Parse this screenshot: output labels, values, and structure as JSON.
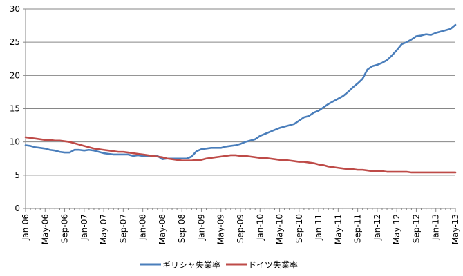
{
  "chart_data": {
    "type": "line",
    "title": "",
    "xlabel": "",
    "ylabel": "",
    "ylim": [
      0,
      30
    ],
    "yticks": [
      0,
      5,
      10,
      15,
      20,
      25,
      30
    ],
    "grid": "horizontal",
    "legend_position": "bottom",
    "x_tick_labels": [
      "Jan-06",
      "May-06",
      "Sep-06",
      "Jan-07",
      "May-07",
      "Sep-07",
      "Jan-08",
      "May-08",
      "Sep-08",
      "Jan-09",
      "May-09",
      "Sep-09",
      "Jan-10",
      "May-10",
      "Sep-10",
      "Jan-11",
      "May-11",
      "Sep-11",
      "Jan-12",
      "May-12",
      "Sep-12",
      "Jan-13",
      "May-13"
    ],
    "x": [
      "Jan-06",
      "Feb-06",
      "Mar-06",
      "Apr-06",
      "May-06",
      "Jun-06",
      "Jul-06",
      "Aug-06",
      "Sep-06",
      "Oct-06",
      "Nov-06",
      "Dec-06",
      "Jan-07",
      "Feb-07",
      "Mar-07",
      "Apr-07",
      "May-07",
      "Jun-07",
      "Jul-07",
      "Aug-07",
      "Sep-07",
      "Oct-07",
      "Nov-07",
      "Dec-07",
      "Jan-08",
      "Feb-08",
      "Mar-08",
      "Apr-08",
      "May-08",
      "Jun-08",
      "Jul-08",
      "Aug-08",
      "Sep-08",
      "Oct-08",
      "Nov-08",
      "Dec-08",
      "Jan-09",
      "Feb-09",
      "Mar-09",
      "Apr-09",
      "May-09",
      "Jun-09",
      "Jul-09",
      "Aug-09",
      "Sep-09",
      "Oct-09",
      "Nov-09",
      "Dec-09",
      "Jan-10",
      "Feb-10",
      "Mar-10",
      "Apr-10",
      "May-10",
      "Jun-10",
      "Jul-10",
      "Aug-10",
      "Sep-10",
      "Oct-10",
      "Nov-10",
      "Dec-10",
      "Jan-11",
      "Feb-11",
      "Mar-11",
      "Apr-11",
      "May-11",
      "Jun-11",
      "Jul-11",
      "Aug-11",
      "Sep-11",
      "Oct-11",
      "Nov-11",
      "Dec-11",
      "Jan-12",
      "Feb-12",
      "Mar-12",
      "Apr-12",
      "May-12",
      "Jun-12",
      "Jul-12",
      "Aug-12",
      "Sep-12",
      "Oct-12",
      "Nov-12",
      "Dec-12",
      "Jan-13",
      "Feb-13",
      "Mar-13",
      "Apr-13",
      "May-13"
    ],
    "series": [
      {
        "name": "ギリシャ失業率",
        "color": "#4a7ebb",
        "values": [
          9.5,
          9.4,
          9.2,
          9.1,
          9.0,
          8.8,
          8.7,
          8.5,
          8.4,
          8.4,
          8.8,
          8.8,
          8.7,
          8.8,
          8.7,
          8.5,
          8.3,
          8.2,
          8.1,
          8.1,
          8.1,
          8.1,
          7.9,
          8.0,
          7.9,
          7.9,
          7.9,
          7.9,
          7.4,
          7.5,
          7.5,
          7.5,
          7.5,
          7.5,
          7.8,
          8.6,
          8.9,
          9.0,
          9.1,
          9.1,
          9.1,
          9.3,
          9.4,
          9.5,
          9.7,
          10.0,
          10.2,
          10.4,
          10.9,
          11.2,
          11.5,
          11.8,
          12.1,
          12.3,
          12.5,
          12.7,
          13.2,
          13.7,
          13.9,
          14.4,
          14.7,
          15.2,
          15.7,
          16.1,
          16.5,
          16.9,
          17.5,
          18.2,
          18.8,
          19.5,
          20.9,
          21.4,
          21.6,
          21.9,
          22.3,
          23.0,
          23.8,
          24.7,
          25.0,
          25.4,
          25.9,
          26.0,
          26.2,
          26.1,
          26.4,
          26.6,
          26.8,
          27.0,
          27.6
        ]
      },
      {
        "name": "ドイツ失業率",
        "color": "#be4b48",
        "values": [
          10.7,
          10.6,
          10.5,
          10.4,
          10.3,
          10.3,
          10.2,
          10.2,
          10.1,
          10.0,
          9.8,
          9.6,
          9.4,
          9.2,
          9.0,
          8.9,
          8.8,
          8.7,
          8.6,
          8.5,
          8.5,
          8.4,
          8.3,
          8.2,
          8.1,
          8.0,
          7.9,
          7.8,
          7.7,
          7.5,
          7.4,
          7.3,
          7.2,
          7.2,
          7.2,
          7.3,
          7.3,
          7.5,
          7.6,
          7.7,
          7.8,
          7.9,
          8.0,
          8.0,
          7.9,
          7.9,
          7.8,
          7.7,
          7.6,
          7.6,
          7.5,
          7.4,
          7.3,
          7.3,
          7.2,
          7.1,
          7.0,
          7.0,
          6.9,
          6.8,
          6.6,
          6.5,
          6.3,
          6.2,
          6.1,
          6.0,
          5.9,
          5.9,
          5.8,
          5.8,
          5.7,
          5.6,
          5.6,
          5.6,
          5.5,
          5.5,
          5.5,
          5.5,
          5.5,
          5.4,
          5.4,
          5.4,
          5.4,
          5.4,
          5.4,
          5.4,
          5.4,
          5.4,
          5.4
        ]
      }
    ]
  }
}
